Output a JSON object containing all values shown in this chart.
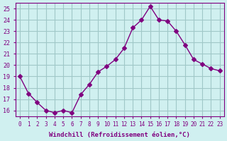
{
  "x": [
    0,
    1,
    2,
    3,
    4,
    5,
    6,
    7,
    8,
    9,
    10,
    11,
    12,
    13,
    14,
    15,
    16,
    17,
    18,
    19,
    20,
    21,
    22,
    23
  ],
  "y": [
    19.0,
    17.5,
    16.7,
    16.0,
    15.8,
    16.0,
    15.8,
    17.4,
    18.3,
    19.4,
    19.9,
    20.5,
    21.5,
    23.3,
    24.0,
    25.2,
    24.0,
    23.9,
    23.0,
    21.8,
    20.5,
    20.1,
    19.7,
    19.5
  ],
  "line_color": "#800080",
  "marker": "D",
  "marker_size": 3,
  "bg_color": "#d0f0f0",
  "grid_color": "#a0c8c8",
  "xlabel": "Windchill (Refroidissement éolien,°C)",
  "xlabel_color": "#800080",
  "tick_color": "#800080",
  "ylim": [
    15.5,
    25.5
  ],
  "xlim": [
    -0.5,
    23.5
  ],
  "yticks": [
    16,
    17,
    18,
    19,
    20,
    21,
    22,
    23,
    24,
    25
  ],
  "xticks": [
    0,
    1,
    2,
    3,
    4,
    5,
    6,
    7,
    8,
    9,
    10,
    11,
    12,
    13,
    14,
    15,
    16,
    17,
    18,
    19,
    20,
    21,
    22,
    23
  ],
  "xtick_labels": [
    "0",
    "1",
    "2",
    "3",
    "4",
    "5",
    "6",
    "7",
    "8",
    "9",
    "10",
    "11",
    "12",
    "13",
    "14",
    "15",
    "16",
    "17",
    "18",
    "19",
    "20",
    "21",
    "22",
    "23"
  ]
}
